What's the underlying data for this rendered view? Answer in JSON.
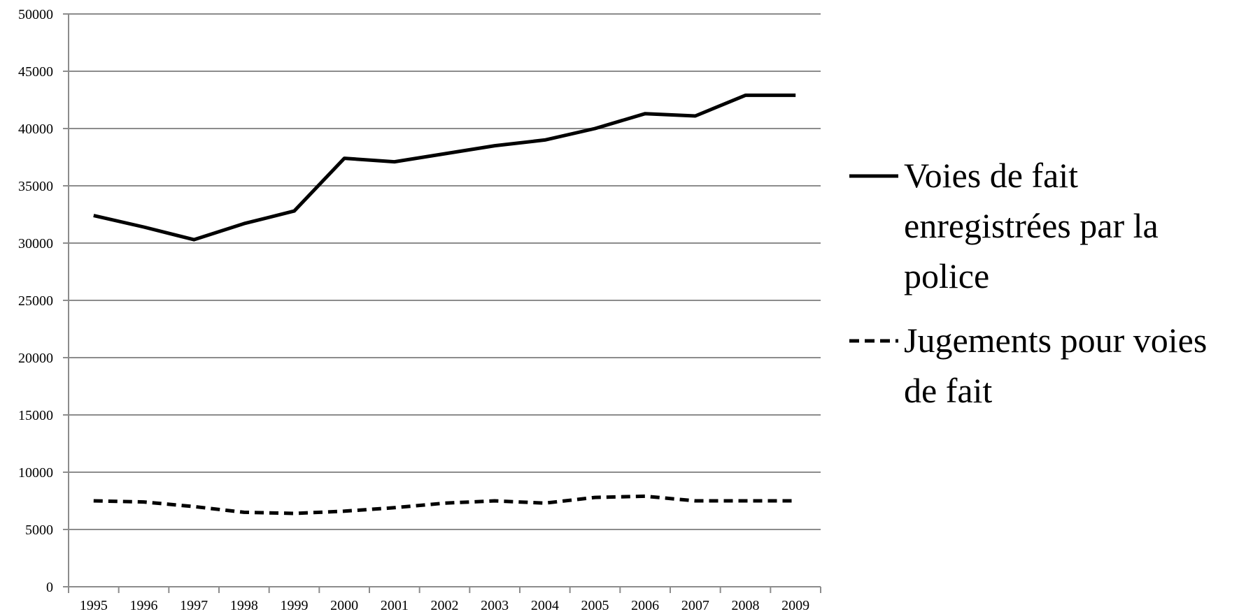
{
  "chart_data": {
    "type": "line",
    "categories": [
      "1995",
      "1996",
      "1997",
      "1998",
      "1999",
      "2000",
      "2001",
      "2002",
      "2003",
      "2004",
      "2005",
      "2006",
      "2007",
      "2008",
      "2009"
    ],
    "y_ticks": [
      "0",
      "5000",
      "10000",
      "15000",
      "20000",
      "25000",
      "30000",
      "35000",
      "40000",
      "45000",
      "50000"
    ],
    "ylim": [
      0,
      50000
    ],
    "grid": true,
    "legend_position": "right",
    "series": [
      {
        "name": "Voies de fait enregistrées par la police",
        "name_lines": [
          "Voies de fait",
          "enregistrées par la",
          "police"
        ],
        "line_style": "solid",
        "color": "#000000",
        "values": [
          32400,
          31400,
          30300,
          31700,
          32800,
          37400,
          37100,
          37800,
          38500,
          39000,
          40000,
          41300,
          41100,
          42900,
          42900
        ]
      },
      {
        "name": "Jugements pour voies de fait",
        "name_lines": [
          "Jugements pour voies",
          "de fait"
        ],
        "line_style": "dashed",
        "color": "#000000",
        "values": [
          7500,
          7400,
          7000,
          6500,
          6400,
          6600,
          6900,
          7300,
          7500,
          7300,
          7800,
          7900,
          7500,
          7500,
          7500
        ]
      }
    ]
  }
}
